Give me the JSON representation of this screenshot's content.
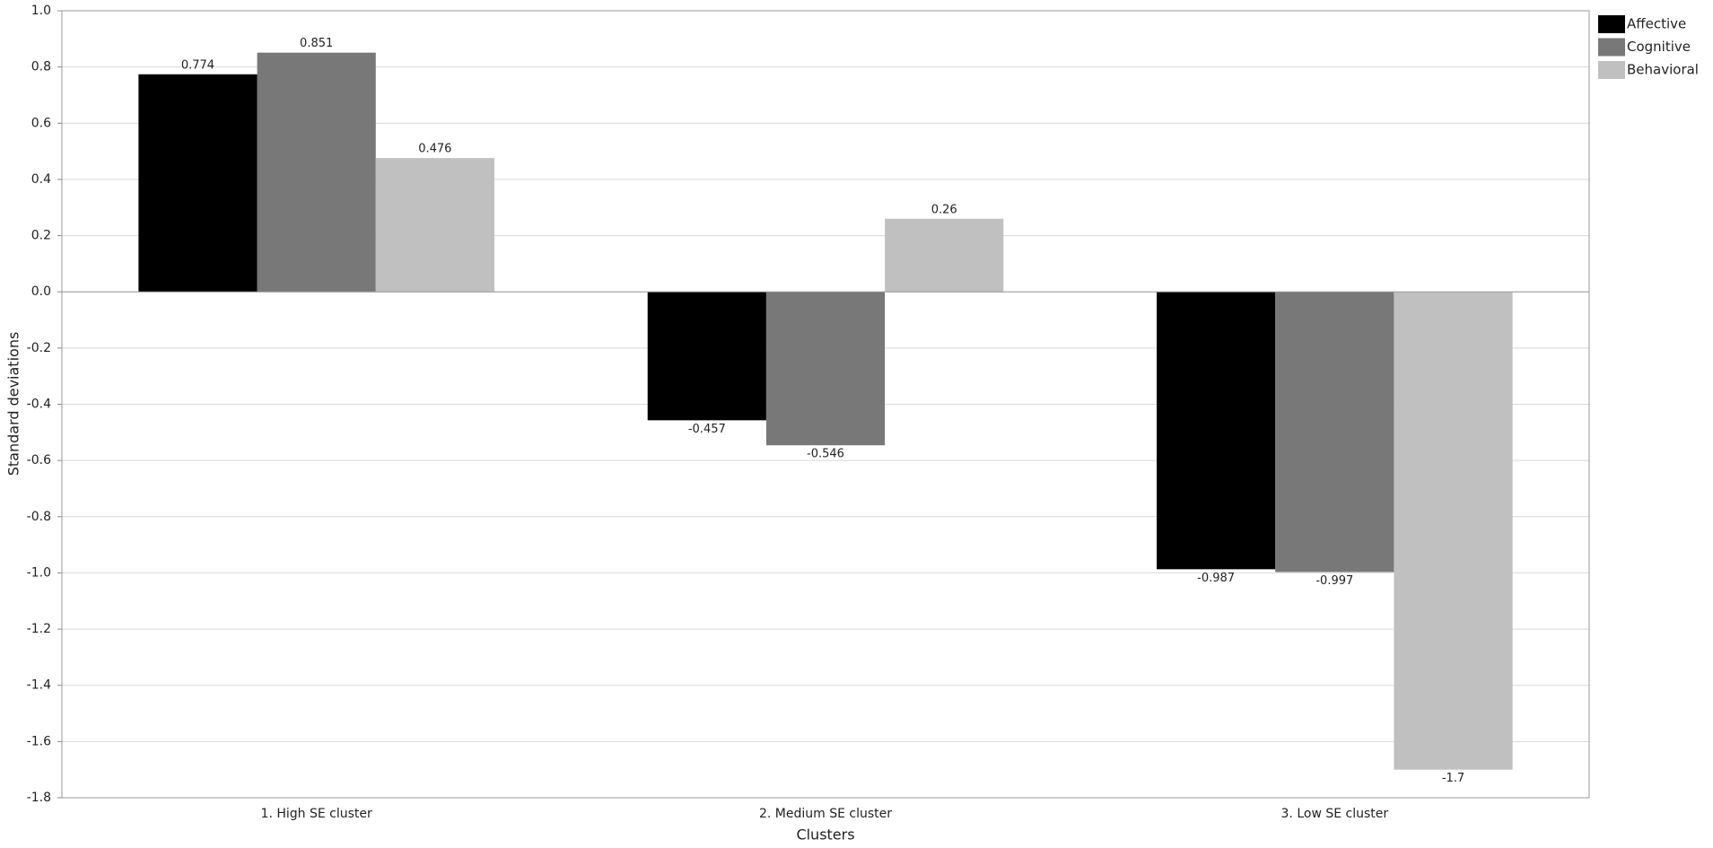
{
  "chart_data": {
    "type": "bar",
    "x_label": "Clusters",
    "y_label": "Standard deviations",
    "categories": [
      "1. High SE cluster",
      "2. Medium SE cluster",
      "3. Low SE cluster"
    ],
    "series": [
      {
        "name": "Affective",
        "color": "#000000",
        "values": [
          0.774,
          -0.457,
          -0.987
        ]
      },
      {
        "name": "Cognitive",
        "color": "#787878",
        "values": [
          0.851,
          -0.546,
          -0.997
        ]
      },
      {
        "name": "Behavioral",
        "color": "#c0c0c0",
        "values": [
          0.476,
          0.26,
          -1.7
        ]
      }
    ],
    "ylim": [
      -1.8,
      1.0
    ],
    "yticks": [
      {
        "value": -1.8,
        "label": "-1.8"
      },
      {
        "value": -1.6,
        "label": "-1.6"
      },
      {
        "value": -1.4,
        "label": "-1.4"
      },
      {
        "value": -1.2,
        "label": "-1.2"
      },
      {
        "value": -1.0,
        "label": "-1.0"
      },
      -0.8,
      -0.6,
      -0.4,
      -0.2,
      {
        "value": 0,
        "label": "0.0"
      },
      0.2,
      0.4,
      0.6,
      0.8,
      {
        "value": 1.0,
        "label": "1.0"
      }
    ],
    "grid": true,
    "legend": "top-right"
  }
}
